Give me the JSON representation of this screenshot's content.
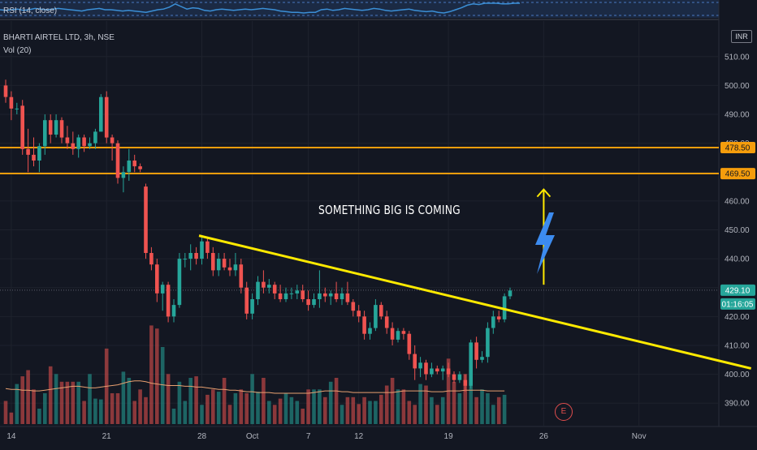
{
  "rsi_panel": {
    "label": "RSI (14, close)"
  },
  "main_panel": {
    "title": "BHARTI AIRTEL LTD, 3h, NSE",
    "volume_label": "Vol (20)",
    "currency_button": "INR",
    "annotation": "SOMETHING BIG IS COMING",
    "earnings_marker": "E"
  },
  "price_tags": {
    "resistance_high": "478.50",
    "resistance_low": "469.50",
    "last_price": "429.10",
    "countdown": "01:16:05"
  },
  "colors": {
    "background": "#131722",
    "bull": "#26a69a",
    "bear": "#ef5350",
    "horizontal_lines": "#f59d0c",
    "trendline": "#ffea00",
    "arrow": "#ffea00",
    "lightning": "#3c8bef",
    "volume_ma": "#e8a070",
    "rsi_line": "#3b8fd6"
  },
  "chart_data": {
    "type": "candlestick",
    "symbol": "BHARTI AIRTEL LTD",
    "interval": "3h",
    "exchange": "NSE",
    "ylim": [
      385,
      515
    ],
    "y_ticks": [
      390,
      400,
      410,
      420,
      430,
      440,
      450,
      460,
      470,
      480,
      490,
      500,
      510
    ],
    "y_tick_labels": [
      "390.00",
      "400.00",
      "410.00",
      "420.00",
      "430.00",
      "440.00",
      "450.00",
      "460.00",
      "470.00",
      "480.00",
      "490.00",
      "500.00",
      "510.00"
    ],
    "x_ticks": [
      {
        "label": "14",
        "bar": 1
      },
      {
        "label": "21",
        "bar": 18
      },
      {
        "label": "28",
        "bar": 35
      },
      {
        "label": "Oct",
        "bar": 44
      },
      {
        "label": "7",
        "bar": 54
      },
      {
        "label": "12",
        "bar": 63
      },
      {
        "label": "19",
        "bar": 79
      },
      {
        "label": "26",
        "bar": 96
      },
      {
        "label": "Nov",
        "bar": 113
      }
    ],
    "candles": [
      {
        "o": 500,
        "h": 502,
        "l": 494,
        "c": 496
      },
      {
        "o": 496,
        "h": 498,
        "l": 488,
        "c": 492
      },
      {
        "o": 492,
        "h": 494,
        "l": 490,
        "c": 492
      },
      {
        "o": 493,
        "h": 495,
        "l": 476,
        "c": 478
      },
      {
        "o": 478,
        "h": 485,
        "l": 470,
        "c": 476
      },
      {
        "o": 476,
        "h": 482,
        "l": 472,
        "c": 474
      },
      {
        "o": 474,
        "h": 480,
        "l": 470,
        "c": 479
      },
      {
        "o": 479,
        "h": 490,
        "l": 476,
        "c": 488
      },
      {
        "o": 488,
        "h": 490,
        "l": 480,
        "c": 483
      },
      {
        "o": 483,
        "h": 490,
        "l": 482,
        "c": 488
      },
      {
        "o": 488,
        "h": 489,
        "l": 480,
        "c": 482
      },
      {
        "o": 482,
        "h": 486,
        "l": 478,
        "c": 480
      },
      {
        "o": 480,
        "h": 484,
        "l": 476,
        "c": 478
      },
      {
        "o": 478,
        "h": 483,
        "l": 475,
        "c": 482
      },
      {
        "o": 482,
        "h": 483,
        "l": 477,
        "c": 479
      },
      {
        "o": 479,
        "h": 482,
        "l": 478,
        "c": 480
      },
      {
        "o": 480,
        "h": 485,
        "l": 478,
        "c": 484
      },
      {
        "o": 484,
        "h": 497,
        "l": 484,
        "c": 496
      },
      {
        "o": 496,
        "h": 498,
        "l": 480,
        "c": 482
      },
      {
        "o": 482,
        "h": 483,
        "l": 474,
        "c": 480
      },
      {
        "o": 480,
        "h": 481,
        "l": 466,
        "c": 468
      },
      {
        "o": 468,
        "h": 472,
        "l": 463,
        "c": 470
      },
      {
        "o": 470,
        "h": 478,
        "l": 467,
        "c": 474
      },
      {
        "o": 474,
        "h": 476,
        "l": 470,
        "c": 472
      },
      {
        "o": 472,
        "h": 473,
        "l": 470,
        "c": 471
      },
      {
        "o": 465,
        "h": 466,
        "l": 440,
        "c": 442
      },
      {
        "o": 442,
        "h": 444,
        "l": 436,
        "c": 438
      },
      {
        "o": 438,
        "h": 440,
        "l": 425,
        "c": 428
      },
      {
        "o": 428,
        "h": 432,
        "l": 422,
        "c": 431
      },
      {
        "o": 431,
        "h": 432,
        "l": 418,
        "c": 420
      },
      {
        "o": 420,
        "h": 426,
        "l": 418,
        "c": 424
      },
      {
        "o": 424,
        "h": 442,
        "l": 423,
        "c": 440
      },
      {
        "o": 440,
        "h": 442,
        "l": 437,
        "c": 440
      },
      {
        "o": 440,
        "h": 445,
        "l": 436,
        "c": 442
      },
      {
        "o": 442,
        "h": 444,
        "l": 438,
        "c": 440
      },
      {
        "o": 440,
        "h": 448,
        "l": 438,
        "c": 446
      },
      {
        "o": 446,
        "h": 447,
        "l": 440,
        "c": 442
      },
      {
        "o": 442,
        "h": 444,
        "l": 434,
        "c": 436
      },
      {
        "o": 436,
        "h": 442,
        "l": 434,
        "c": 440
      },
      {
        "o": 440,
        "h": 442,
        "l": 436,
        "c": 437
      },
      {
        "o": 437,
        "h": 440,
        "l": 434,
        "c": 436
      },
      {
        "o": 436,
        "h": 442,
        "l": 434,
        "c": 438
      },
      {
        "o": 438,
        "h": 440,
        "l": 428,
        "c": 430
      },
      {
        "o": 430,
        "h": 432,
        "l": 419,
        "c": 421
      },
      {
        "o": 421,
        "h": 428,
        "l": 419,
        "c": 426
      },
      {
        "o": 426,
        "h": 434,
        "l": 424,
        "c": 432
      },
      {
        "o": 432,
        "h": 436,
        "l": 428,
        "c": 430
      },
      {
        "o": 430,
        "h": 433,
        "l": 428,
        "c": 431
      },
      {
        "o": 431,
        "h": 432,
        "l": 426,
        "c": 428
      },
      {
        "o": 428,
        "h": 431,
        "l": 425,
        "c": 426
      },
      {
        "o": 426,
        "h": 430,
        "l": 425,
        "c": 428
      },
      {
        "o": 428,
        "h": 430,
        "l": 426,
        "c": 428
      },
      {
        "o": 428,
        "h": 431,
        "l": 426,
        "c": 429
      },
      {
        "o": 429,
        "h": 431,
        "l": 425,
        "c": 426
      },
      {
        "o": 426,
        "h": 429,
        "l": 422,
        "c": 424
      },
      {
        "o": 424,
        "h": 428,
        "l": 423,
        "c": 426
      },
      {
        "o": 426,
        "h": 436,
        "l": 423,
        "c": 428
      },
      {
        "o": 428,
        "h": 430,
        "l": 425,
        "c": 427
      },
      {
        "o": 427,
        "h": 429,
        "l": 424,
        "c": 428
      },
      {
        "o": 428,
        "h": 432,
        "l": 425,
        "c": 426
      },
      {
        "o": 426,
        "h": 430,
        "l": 424,
        "c": 428
      },
      {
        "o": 428,
        "h": 432,
        "l": 424,
        "c": 425
      },
      {
        "o": 425,
        "h": 426,
        "l": 420,
        "c": 422
      },
      {
        "o": 422,
        "h": 424,
        "l": 418,
        "c": 420
      },
      {
        "o": 420,
        "h": 422,
        "l": 412,
        "c": 414
      },
      {
        "o": 414,
        "h": 418,
        "l": 412,
        "c": 416
      },
      {
        "o": 416,
        "h": 426,
        "l": 415,
        "c": 424
      },
      {
        "o": 424,
        "h": 425,
        "l": 419,
        "c": 420
      },
      {
        "o": 420,
        "h": 422,
        "l": 414,
        "c": 416
      },
      {
        "o": 416,
        "h": 418,
        "l": 410,
        "c": 412
      },
      {
        "o": 412,
        "h": 416,
        "l": 411,
        "c": 415
      },
      {
        "o": 415,
        "h": 416,
        "l": 412,
        "c": 414
      },
      {
        "o": 414,
        "h": 415,
        "l": 405,
        "c": 407
      },
      {
        "o": 407,
        "h": 410,
        "l": 398,
        "c": 402
      },
      {
        "o": 402,
        "h": 406,
        "l": 399,
        "c": 404
      },
      {
        "o": 404,
        "h": 405,
        "l": 398,
        "c": 400
      },
      {
        "o": 400,
        "h": 404,
        "l": 399,
        "c": 402
      },
      {
        "o": 402,
        "h": 403,
        "l": 400,
        "c": 401
      },
      {
        "o": 401,
        "h": 403,
        "l": 398,
        "c": 402
      },
      {
        "o": 402,
        "h": 404,
        "l": 399,
        "c": 400
      },
      {
        "o": 400,
        "h": 401,
        "l": 397,
        "c": 398
      },
      {
        "o": 398,
        "h": 401,
        "l": 397,
        "c": 400
      },
      {
        "o": 398,
        "h": 400,
        "l": 394,
        "c": 396
      },
      {
        "o": 396,
        "h": 412,
        "l": 395,
        "c": 411
      },
      {
        "o": 411,
        "h": 413,
        "l": 402,
        "c": 405
      },
      {
        "o": 405,
        "h": 408,
        "l": 404,
        "c": 406
      },
      {
        "o": 406,
        "h": 418,
        "l": 404,
        "c": 416
      },
      {
        "o": 416,
        "h": 422,
        "l": 414,
        "c": 420
      },
      {
        "o": 420,
        "h": 422,
        "l": 418,
        "c": 419
      },
      {
        "o": 419,
        "h": 428,
        "l": 418,
        "c": 427
      },
      {
        "o": 427,
        "h": 430,
        "l": 426,
        "c": 429
      }
    ],
    "volume": [
      3,
      1.5,
      5.2,
      6.2,
      7,
      4.5,
      2,
      4,
      7.5,
      6.5,
      5.5,
      5.5,
      5.5,
      5.5,
      3,
      6.5,
      3.3,
      3.2,
      9.8,
      4,
      4,
      6.8,
      6,
      3,
      4.5,
      3.5,
      12.8,
      12.4,
      10,
      6.5,
      2,
      5.5,
      3,
      6,
      6.2,
      2.5,
      3.8,
      4.5,
      4.2,
      6,
      2.5,
      4,
      4.5,
      4,
      6.5,
      4.2,
      6,
      3,
      2.5,
      3.3,
      4,
      3.5,
      3,
      2,
      4.5,
      4.5,
      4.5,
      3.5,
      5.5,
      6,
      2.5,
      3.5,
      3.5,
      2.6,
      3.5,
      3,
      3,
      3.8,
      5,
      6,
      4.5,
      4.5,
      3,
      2.5,
      5.2,
      5,
      3.5,
      2.5,
      3.5,
      8.5,
      5.5,
      4,
      6.5,
      5.5,
      3.5,
      4.5,
      4,
      2.5,
      3.5,
      3.8
    ],
    "volume_ma": [
      4.6,
      4.5,
      4.5,
      4.4,
      4.4,
      4.3,
      4.3,
      4.4,
      4.5,
      4.6,
      4.7,
      4.8,
      4.9,
      4.9,
      4.8,
      4.7,
      4.7,
      4.8,
      4.9,
      5,
      5.1,
      5.3,
      5.5,
      5.6,
      5.6,
      5.5,
      5.3,
      5.2,
      5.1,
      5,
      5,
      5,
      4.9,
      4.9,
      4.8,
      4.8,
      4.7,
      4.6,
      4.5,
      4.5,
      4.4,
      4.4,
      4.3,
      4.2,
      4.2,
      4.1,
      4.1,
      4.1,
      4,
      4,
      4,
      4,
      4,
      4,
      4,
      4.1,
      4.2,
      4.3,
      4.3,
      4.3,
      4.2,
      4.2,
      4.1,
      4.1,
      4.1,
      4.1,
      4.1,
      4.1,
      4.1,
      4.1,
      4.2,
      4.3,
      4.3,
      4.3,
      4.3,
      4.3,
      4.2,
      4.2,
      4.2,
      4.3,
      4.3,
      4.3,
      4.4,
      4.4,
      4.4,
      4.4,
      4.3,
      4.3,
      4.3,
      4.3
    ],
    "horizontal_levels": [
      478.5,
      469.5
    ],
    "last_price": 429.1,
    "trendline": [
      {
        "bar": 34.5,
        "price": 448
      },
      {
        "bar": 133,
        "price": 402
      }
    ],
    "arrow": {
      "bar": 96,
      "from_price": 431,
      "to_price": 464
    },
    "rsi_values": [
      0.5,
      0.45,
      0.5,
      0.55,
      0.45,
      0.5,
      0.6,
      0.55,
      0.5,
      0.55,
      0.6,
      0.55,
      0.5,
      0.45,
      0.4,
      0.5,
      0.55,
      0.6,
      0.5,
      0.5,
      0.45,
      0.4,
      0.45,
      0.4,
      0.35,
      0.3,
      0.4,
      0.5,
      0.55,
      0.7,
      0.95,
      0.75,
      0.55,
      0.65,
      0.6,
      0.45,
      0.4,
      0.5,
      0.55,
      0.5,
      0.45,
      0.5,
      0.55,
      0.5,
      0.55,
      0.6,
      0.55,
      0.5,
      0.4,
      0.35,
      0.3,
      0.3,
      0.25,
      0.3,
      0.3,
      0.5,
      0.55,
      0.45,
      0.5,
      0.6,
      0.55,
      0.5,
      0.45,
      0.5,
      0.6,
      0.55,
      0.45,
      0.4,
      0.45,
      0.5,
      0.55,
      0.45,
      0.4,
      0.35,
      0.4,
      0.3,
      0.25,
      0.35,
      0.5,
      0.65,
      0.85,
      0.95,
      0.9,
      1,
      1,
      1,
      0.95,
      0.95,
      1,
      1
    ]
  }
}
